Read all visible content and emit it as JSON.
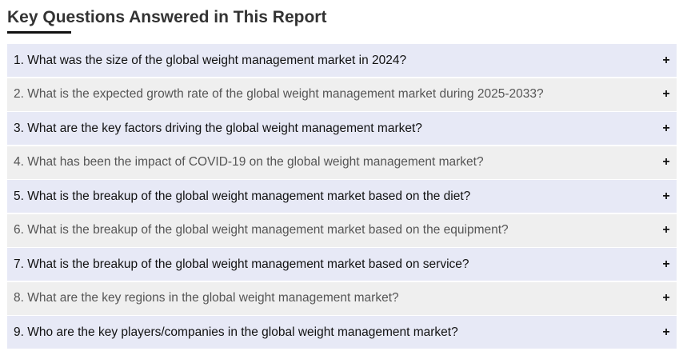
{
  "heading": {
    "title": "Key Questions Answered in This Report"
  },
  "faq": {
    "items": [
      {
        "question": "1. What was the size of the global weight management market in 2024?",
        "toggle": "+"
      },
      {
        "question": "2. What is the expected growth rate of the global weight management market during 2025-2033?",
        "toggle": "+"
      },
      {
        "question": "3. What are the key factors driving the global weight management market?",
        "toggle": "+"
      },
      {
        "question": "4. What has been the impact of COVID-19 on the global weight management market?",
        "toggle": "+"
      },
      {
        "question": "5. What is the breakup of the global weight management market based on the diet?",
        "toggle": "+"
      },
      {
        "question": "6. What is the breakup of the global weight management market based on the equipment?",
        "toggle": "+"
      },
      {
        "question": "7. What is the breakup of the global weight management market based on service?",
        "toggle": "+"
      },
      {
        "question": "8. What are the key regions in the global weight management market?",
        "toggle": "+"
      },
      {
        "question": "9. Who are the key players/companies in the global weight management market?",
        "toggle": "+"
      }
    ]
  },
  "colors": {
    "row_odd": "#e7e9f6",
    "row_even": "#efefef",
    "heading_text": "#333333",
    "underline": "#111111"
  },
  "icons": {
    "expand": "plus-icon"
  }
}
